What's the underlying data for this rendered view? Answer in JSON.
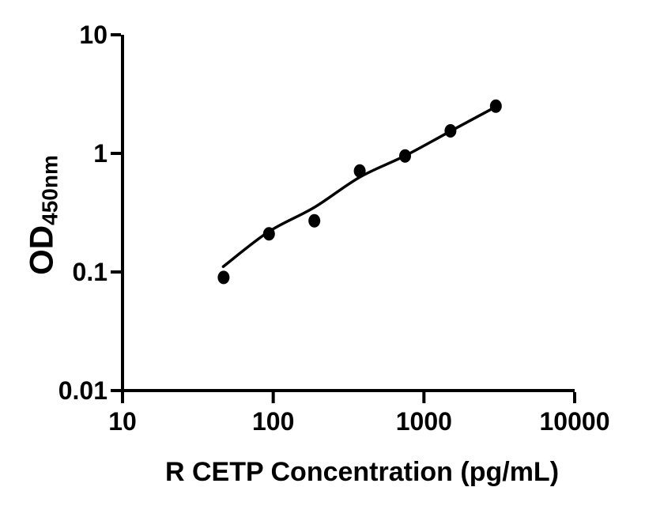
{
  "figure": {
    "background": "#ffffff",
    "ink_color": "#000000"
  },
  "chart_data": {
    "type": "scatter",
    "title": "",
    "xlabel": "R CETP Concentration (pg/mL)",
    "ylabel_main": "OD",
    "ylabel_sub": "450nm",
    "x_scale": "log",
    "y_scale": "log",
    "xlim": [
      10,
      10000
    ],
    "ylim": [
      0.01,
      10
    ],
    "grid": false,
    "legend": "none",
    "x_ticks": [
      {
        "value": 10,
        "label": "10"
      },
      {
        "value": 100,
        "label": "100"
      },
      {
        "value": 1000,
        "label": "1000"
      },
      {
        "value": 10000,
        "label": "10000"
      }
    ],
    "y_ticks": [
      {
        "value": 10,
        "label": "10"
      },
      {
        "value": 1,
        "label": "1"
      },
      {
        "value": 0.1,
        "label": "0.1"
      },
      {
        "value": 0.01,
        "label": "0.01"
      }
    ],
    "series": [
      {
        "name": "R CETP standard points",
        "marker": "filled-circle",
        "color": "#000000",
        "points": [
          {
            "x": 46.88,
            "y": 0.09
          },
          {
            "x": 93.75,
            "y": 0.21
          },
          {
            "x": 187.5,
            "y": 0.27
          },
          {
            "x": 375,
            "y": 0.71
          },
          {
            "x": 750,
            "y": 0.95
          },
          {
            "x": 1500,
            "y": 1.55
          },
          {
            "x": 3000,
            "y": 2.5
          }
        ]
      }
    ],
    "fit_curve": {
      "name": "fitted standard curve",
      "color": "#000000",
      "points": [
        {
          "x": 46.6,
          "y": 0.111
        },
        {
          "x": 93,
          "y": 0.218
        },
        {
          "x": 187,
          "y": 0.35
        },
        {
          "x": 375,
          "y": 0.63
        },
        {
          "x": 750,
          "y": 0.955
        },
        {
          "x": 1500,
          "y": 1.54
        },
        {
          "x": 3000,
          "y": 2.47
        }
      ]
    }
  }
}
